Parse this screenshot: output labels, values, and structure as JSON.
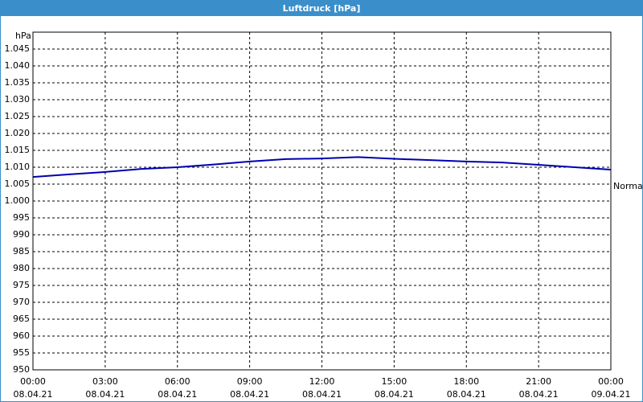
{
  "chart_data": {
    "type": "line",
    "title": "Luftdruck [hPa]",
    "y_unit": "hPa",
    "x": [
      0,
      1.5,
      3,
      4.5,
      6,
      7.5,
      9,
      10.5,
      12,
      13.5,
      15,
      16.5,
      18,
      19.5,
      21,
      22.5,
      24
    ],
    "series": [
      {
        "color": "#0000b0",
        "values": [
          1007.1,
          1007.9,
          1008.6,
          1009.5,
          1010.0,
          1010.8,
          1011.7,
          1012.4,
          1012.6,
          1013.0,
          1012.5,
          1012.1,
          1011.7,
          1011.4,
          1010.7,
          1010.0,
          1009.3
        ]
      }
    ],
    "xlim": [
      0,
      24
    ],
    "xticks": [
      {
        "value": 0,
        "label": "00:00",
        "date": "08.04.21"
      },
      {
        "value": 3,
        "label": "03:00",
        "date": "08.04.21"
      },
      {
        "value": 6,
        "label": "06:00",
        "date": "08.04.21"
      },
      {
        "value": 9,
        "label": "09:00",
        "date": "08.04.21"
      },
      {
        "value": 12,
        "label": "12:00",
        "date": "08.04.21"
      },
      {
        "value": 15,
        "label": "15:00",
        "date": "08.04.21"
      },
      {
        "value": 18,
        "label": "18:00",
        "date": "08.04.21"
      },
      {
        "value": 21,
        "label": "21:00",
        "date": "08.04.21"
      },
      {
        "value": 24,
        "label": "00:00",
        "date": "09.04.21"
      }
    ],
    "ylim": [
      950,
      1050
    ],
    "yticks": [
      950,
      955,
      960,
      965,
      970,
      975,
      980,
      985,
      990,
      995,
      {
        "value": 1000,
        "label": "1.000"
      },
      {
        "value": 1005,
        "label": "1.005"
      },
      {
        "value": 1010,
        "label": "1.010"
      },
      {
        "value": 1015,
        "label": "1.015"
      },
      {
        "value": 1020,
        "label": "1.020"
      },
      {
        "value": 1025,
        "label": "1.025"
      },
      {
        "value": 1030,
        "label": "1.030"
      },
      {
        "value": 1035,
        "label": "1.035"
      },
      {
        "value": 1040,
        "label": "1.040"
      },
      {
        "value": 1045,
        "label": "1.045"
      }
    ],
    "grid": true,
    "annotations": [
      {
        "text": "Normal",
        "y": 1004.3
      }
    ]
  }
}
